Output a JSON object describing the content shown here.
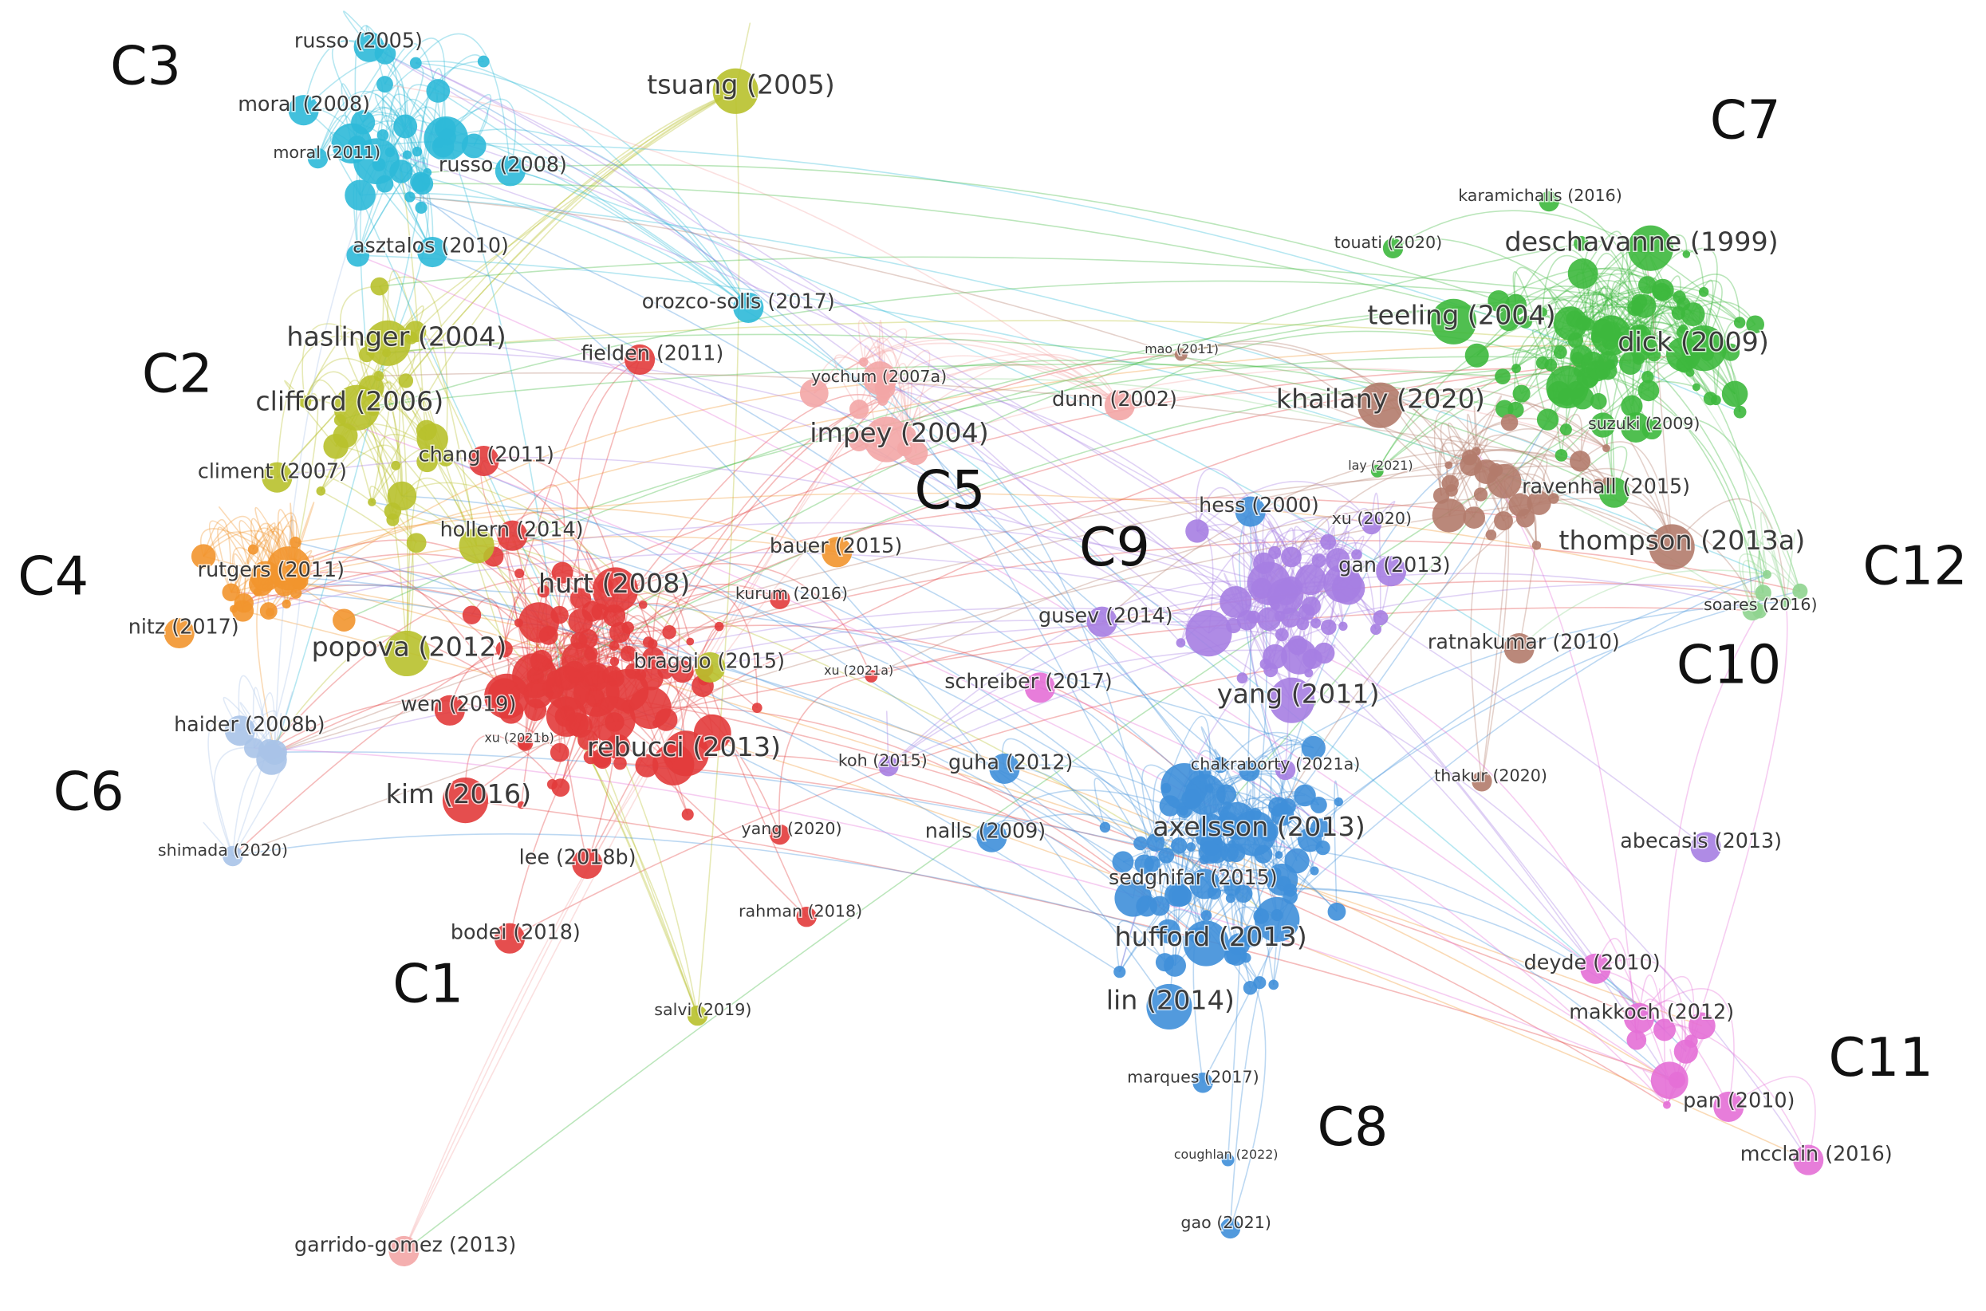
{
  "clusters": [
    {
      "label": "C1",
      "color": "#e23b3b",
      "nodes": [
        "fielden (2011)",
        "chang (2011)",
        "hollern (2014)",
        "hurt (2008)",
        "kurum (2016)",
        "xu (2021a)",
        "wen (2019)",
        "xu (2021b)",
        "rebucci (2013)",
        "kim (2016)",
        "yang (2020)",
        "lee (2018b)",
        "rahman (2018)",
        "bodei (2018)"
      ]
    },
    {
      "label": "C2",
      "color": "#b8c12c",
      "nodes": [
        "tsuang (2005)",
        "haslinger (2004)",
        "clifford (2006)",
        "climent (2007)",
        "popova (2012)",
        "braggio (2015)",
        "salvi (2019)"
      ]
    },
    {
      "label": "C3",
      "color": "#2db9d8",
      "nodes": [
        "russo (2005)",
        "moral (2008)",
        "moral (2011)",
        "russo (2008)",
        "asztalos (2010)",
        "orozco-solis (2017)"
      ]
    },
    {
      "label": "C4",
      "color": "#f2952e",
      "nodes": [
        "bauer (2015)",
        "rutgers (2011)",
        "nitz (2017)"
      ]
    },
    {
      "label": "C5",
      "color": "#f3a6a6",
      "nodes": [
        "yochum (2007a)",
        "dunn (2002)",
        "impey (2004)",
        "garrido-gomez (2013)"
      ]
    },
    {
      "label": "C6",
      "color": "#a9c3e8",
      "nodes": [
        "haider (2008b)",
        "shimada (2020)"
      ]
    },
    {
      "label": "C7",
      "color": "#3db83d",
      "nodes": [
        "karamichalis (2016)",
        "touati (2020)",
        "deschavanne (1999)",
        "teeling (2004)",
        "dick (2009)",
        "suzuki (2009)",
        "lay (2021)",
        "ravenhall (2015)"
      ]
    },
    {
      "label": "C8",
      "color": "#3f8fd9",
      "nodes": [
        "hess (2000)",
        "guha (2012)",
        "nalls (2009)",
        "axelsson (2013)",
        "sedghifar (2015)",
        "hufford (2013)",
        "lin (2014)",
        "marques (2017)",
        "coughlan (2022)",
        "gao (2021)"
      ]
    },
    {
      "label": "C9",
      "color": "#a67ee2",
      "nodes": [
        "xu (2020)",
        "gan (2013)",
        "gusev (2014)",
        "koh (2015)",
        "yang (2011)",
        "chakraborty (2021a)",
        "abecasis (2013)"
      ]
    },
    {
      "label": "C10",
      "color": "#b27b6b",
      "nodes": [
        "mao (2011)",
        "khailany (2020)",
        "thompson (2013a)",
        "ratnakumar (2010)",
        "thakur (2020)"
      ]
    },
    {
      "label": "C11",
      "color": "#e46fd6",
      "nodes": [
        "schreiber (2017)",
        "deyde (2010)",
        "makkoch (2012)",
        "pan (2010)",
        "mcclain (2016)"
      ]
    },
    {
      "label": "C12",
      "color": "#8fd48f",
      "nodes": [
        "soares (2016)"
      ]
    }
  ]
}
